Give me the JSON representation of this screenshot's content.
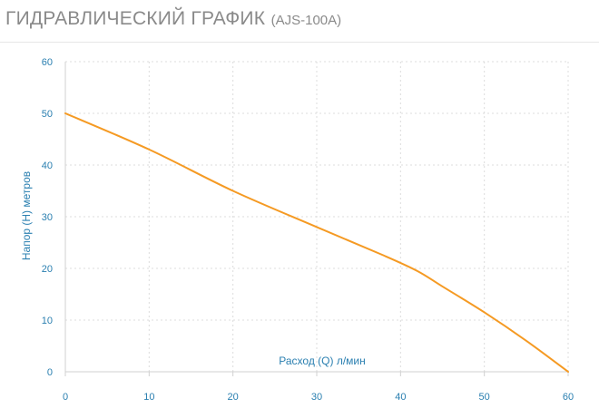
{
  "header": {
    "title": "ГИДРАВЛИЧЕСКИЙ ГРАФИК",
    "model": "(AJS-100A)"
  },
  "chart_data": {
    "type": "line",
    "xlabel": "Расход (Q) л/мин",
    "ylabel": "Напор (H) метров",
    "xlim": [
      0,
      60
    ],
    "ylim": [
      0,
      60
    ],
    "xticks": [
      0,
      10,
      20,
      30,
      40,
      50,
      60
    ],
    "yticks": [
      0,
      10,
      20,
      30,
      40,
      50,
      60
    ],
    "grid": true,
    "line_color": "#f59a23",
    "label_color": "#2a7fb0",
    "series": [
      {
        "x": [
          0,
          10,
          20,
          30,
          38,
          42,
          45,
          50,
          55,
          60
        ],
        "y": [
          50,
          43,
          35,
          28,
          22.5,
          19.5,
          16.5,
          11.5,
          6,
          0
        ]
      }
    ]
  }
}
